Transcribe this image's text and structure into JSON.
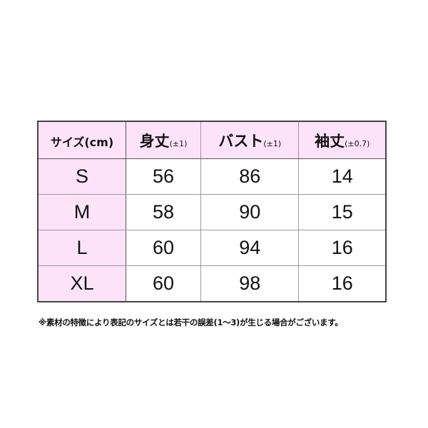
{
  "table": {
    "headers": [
      {
        "main": "サイズ(cm)",
        "sub": ""
      },
      {
        "main": "身丈",
        "sub": "(±1)"
      },
      {
        "main": "バスト",
        "sub": "(±1)"
      },
      {
        "main": "袖丈",
        "sub": "(±0.7)"
      }
    ],
    "rows": [
      [
        "S",
        "56",
        "86",
        "14"
      ],
      [
        "M",
        "58",
        "90",
        "15"
      ],
      [
        "L",
        "60",
        "94",
        "16"
      ],
      [
        "XL",
        "60",
        "98",
        "16"
      ]
    ]
  },
  "note": "※素材の特徴により表記のサイズとは若干の誤差(1〜3)が生じる場合がございます。",
  "colors": {
    "header_bg": "#fde3fa",
    "border": "#444444"
  }
}
